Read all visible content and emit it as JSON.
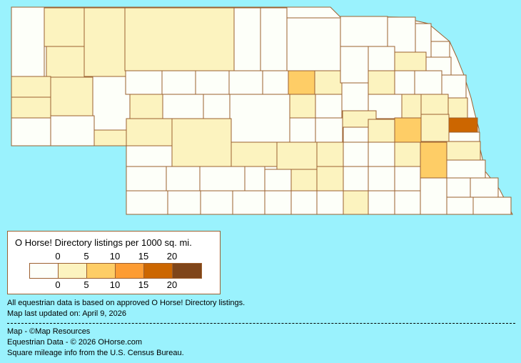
{
  "colors": {
    "background": "#9af2fd",
    "border": "#9c6030",
    "levels": [
      "#fdfff9",
      "#fcf3bf",
      "#fecd66",
      "#fd9c33",
      "#cc6600",
      "#7f4519"
    ]
  },
  "map": {
    "county_levels": [
      0,
      1,
      1,
      1,
      1,
      1,
      1,
      1,
      0,
      0,
      0,
      1,
      0,
      0,
      0,
      0,
      0,
      2,
      1,
      1,
      0,
      0,
      0,
      1,
      0,
      1,
      1,
      0,
      1,
      1,
      1,
      0,
      0,
      0,
      0,
      0,
      0,
      0,
      1,
      1,
      0,
      0,
      0,
      0,
      0,
      0,
      0,
      1,
      0,
      0,
      0,
      0,
      0,
      0,
      0,
      0,
      0,
      0,
      0,
      0,
      1,
      2,
      1,
      0,
      0,
      1,
      1,
      0,
      0,
      0,
      0,
      0,
      0,
      0,
      0,
      1,
      0,
      0,
      0,
      1,
      1,
      1,
      2,
      1,
      4,
      0
    ]
  },
  "legend": {
    "title": "O Horse! Directory listings per 1000 sq. mi.",
    "top_labels": [
      "0",
      "5",
      "10",
      "15",
      "20"
    ],
    "bottom_labels": [
      "0",
      "5",
      "10",
      "15",
      "20"
    ]
  },
  "notes": {
    "data_basis": "All equestrian data is based on approved O Horse! Directory listings.",
    "updated": "Map last updated on: April 9, 2026"
  },
  "credits": {
    "map": "Map - ©Map Resources",
    "equestrian": "Equestrian Data - © 2026 OHorse.com",
    "census": "Square mileage info from the U.S. Census Bureau."
  }
}
